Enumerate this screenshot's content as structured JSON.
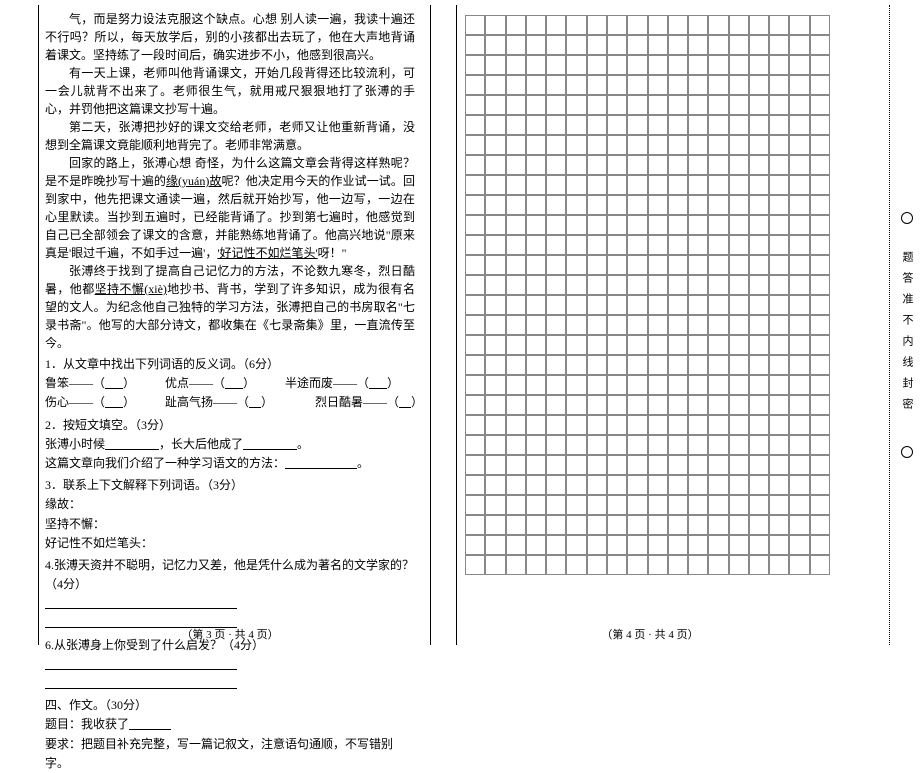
{
  "leftPage": {
    "paragraphs": [
      "气，而是努力设法克服这个缺点。心想 别人读一遍，我读十遍还不行吗？所以，每天放学后，别的小孩都出去玩了，他在大声地背诵着课文。坚持练了一段时间后，确实进步不小，他感到很高兴。",
      "有一天上课，老师叫他背诵课文，开始几段背得还比较流利，可一会儿就背不出来了。老师很生气，就用戒尺狠狠地打了张溥的手心，并罚他把这篇课文抄写十遍。",
      "第二天，张溥把抄好的课文交给老师，老师又让他重新背诵，没想到全篇课文竟能顺利地背完了。老师非常满意。",
      "回家的路上，张溥心想 奇怪，为什么这篇文章会背得这样熟呢？是不是昨晚抄写十遍的",
      "张溥终于找到了提高自己记忆力的方法，不论数九寒冬，烈日酷暑，他都"
    ],
    "yuangu": "缘(yuán)故",
    "afterYuangu": "呢？他决定用今天的作业试一试。回到家中，他先把课文通读一遍，然后就开始抄写，他一边写，一边在心里默读。当抄到五遍时，已经能背诵了。抄到第七遍时，他感觉到自己已全部领会了课文的含意，并能熟练地背诵了。他高兴地说\"原来真是'眼过千遍，不如手过一遍'，",
    "goodMemory": "'好记性不如烂笔头'",
    "ya": "呀！\"",
    "jianchi": "坚持不懈(xiè)",
    "afterJianchi": "地抄书、背书，学到了许多知识，成为很有名望的文人。为纪念他自己独特的学习方法，张溥把自己的书房取名\"七录书斋\"。他写的大部分诗文，都收集在《七录斋集》里，一直流传至今。",
    "q1": {
      "title": "1．从文章中找出下列词语的反义词。（6分）",
      "items": [
        {
          "word": "鲁笨——（",
          "end": "）"
        },
        {
          "word": "优点——（",
          "end": "）"
        },
        {
          "word": "半途而废——（",
          "end": "）"
        },
        {
          "word": "伤心——（",
          "end": "）"
        },
        {
          "word": "趾高气扬——（",
          "end": "）"
        },
        {
          "word": "烈日酷暑——（",
          "end": "）"
        }
      ]
    },
    "q2": {
      "title": "2．按短文填空。（3分）",
      "line1_a": "张溥小时候",
      "line1_b": "，长大后他成了",
      "line2": "这篇文章向我们介绍了一种学习语文的方法："
    },
    "q3": {
      "title": "3．联系上下文解释下列词语。（3分）",
      "items": [
        "缘故：",
        "坚持不懈：",
        "好记性不如烂笔头："
      ]
    },
    "q4": "4.张溥天资并不聪明，记忆力又差，他是凭什么成为著名的文学家的？（4分）",
    "q6": "6.从张溥身上你受到了什么启发？（4分）",
    "section4": {
      "title": "四、作文。（30分）",
      "topic": "题目：我收获了",
      "req": "要求：把题目补充完整，写一篇记叙文，注意语句通顺，不写错别字。"
    },
    "footer": "（第 3 页 · 共 4 页）"
  },
  "rightPage": {
    "gridRows": 28,
    "gridCols": 18,
    "footer": "（第 4 页 · 共 4 页）"
  },
  "binding": "题答准不内线封密",
  "colors": {
    "text": "#000000",
    "gridBorder": "#888888",
    "background": "#ffffff"
  }
}
